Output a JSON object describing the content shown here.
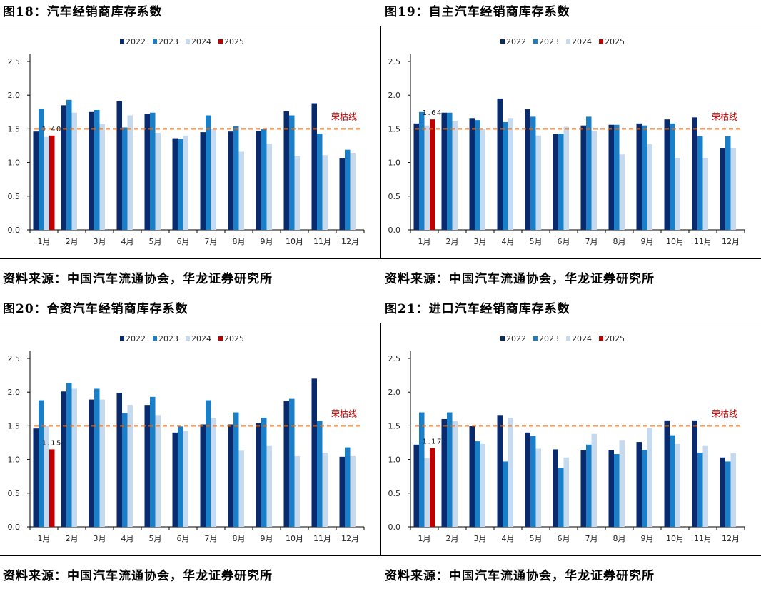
{
  "panels": [
    {
      "title": "图18：汽车经销商库存系数",
      "source": "资料来源：中国汽车流通协会，华龙证券研究所",
      "chart_data": {
        "type": "bar",
        "categories": [
          "1月",
          "2月",
          "3月",
          "4月",
          "5月",
          "6月",
          "7月",
          "8月",
          "9月",
          "10月",
          "11月",
          "12月"
        ],
        "series": [
          {
            "name": "2022",
            "color": "#0a2a6e",
            "values": [
              1.46,
              1.85,
              1.75,
              1.91,
              1.72,
              1.36,
              1.45,
              1.46,
              1.47,
              1.76,
              1.88,
              1.06
            ]
          },
          {
            "name": "2023",
            "color": "#1a7fc9",
            "values": [
              1.8,
              1.93,
              1.78,
              1.52,
              1.74,
              1.35,
              1.7,
              1.54,
              1.5,
              1.7,
              1.43,
              1.19
            ]
          },
          {
            "name": "2024",
            "color": "#c5d9ef",
            "values": [
              1.38,
              1.74,
              1.57,
              1.7,
              1.44,
              1.4,
              1.5,
              1.16,
              1.28,
              1.1,
              1.11,
              1.14
            ]
          },
          {
            "name": "2025",
            "color": "#c00000",
            "values": [
              1.4,
              null,
              null,
              null,
              null,
              null,
              null,
              null,
              null,
              null,
              null,
              null
            ]
          }
        ],
        "annotation": {
          "text": "1.40",
          "series": "2025",
          "category": "1月"
        },
        "reference_line": {
          "value": 1.5,
          "label": "荣枯线",
          "color": "#e07020"
        },
        "yticks": [
          "0.0",
          "0.5",
          "1.0",
          "1.5",
          "2.0",
          "2.5"
        ],
        "ylim": [
          0,
          2.5
        ],
        "legend_position": "top-center"
      }
    },
    {
      "title": "图19：自主汽车经销商库存系数",
      "source": "资料来源：中国汽车流通协会，华龙证券研究所",
      "chart_data": {
        "type": "bar",
        "categories": [
          "1月",
          "2月",
          "3月",
          "4月",
          "5月",
          "6月",
          "7月",
          "8月",
          "9月",
          "10月",
          "11月",
          "12月"
        ],
        "series": [
          {
            "name": "2022",
            "color": "#0a2a6e",
            "values": [
              1.58,
              1.74,
              1.66,
              1.95,
              1.79,
              1.42,
              1.55,
              1.56,
              1.58,
              1.64,
              1.67,
              1.21
            ]
          },
          {
            "name": "2023",
            "color": "#1a7fc9",
            "values": [
              1.75,
              1.74,
              1.63,
              1.6,
              1.68,
              1.43,
              1.68,
              1.56,
              1.55,
              1.58,
              1.39,
              1.39
            ]
          },
          {
            "name": "2024",
            "color": "#c5d9ef",
            "values": [
              1.55,
              1.62,
              1.5,
              1.66,
              1.4,
              1.53,
              1.47,
              1.12,
              1.27,
              1.07,
              1.07,
              1.21
            ]
          },
          {
            "name": "2025",
            "color": "#c00000",
            "values": [
              1.64,
              null,
              null,
              null,
              null,
              null,
              null,
              null,
              null,
              null,
              null,
              null
            ]
          }
        ],
        "annotation": {
          "text": "1.64",
          "series": "2025",
          "category": "1月"
        },
        "reference_line": {
          "value": 1.5,
          "label": "荣枯线",
          "color": "#e07020"
        },
        "yticks": [
          "0.0",
          "0.5",
          "1.0",
          "1.5",
          "2.0",
          "2.5"
        ],
        "ylim": [
          0,
          2.5
        ],
        "legend_position": "top-center"
      }
    },
    {
      "title": "图20：合资汽车经销商库存系数",
      "source": "资料来源：中国汽车流通协会，华龙证券研究所",
      "chart_data": {
        "type": "bar",
        "categories": [
          "1月",
          "2月",
          "3月",
          "4月",
          "5月",
          "6月",
          "7月",
          "8月",
          "9月",
          "10月",
          "11月",
          "12月"
        ],
        "series": [
          {
            "name": "2022",
            "color": "#0a2a6e",
            "values": [
              1.46,
              2.01,
              1.89,
              1.99,
              1.81,
              1.4,
              1.52,
              1.52,
              1.54,
              1.87,
              2.2,
              1.04
            ]
          },
          {
            "name": "2023",
            "color": "#1a7fc9",
            "values": [
              1.88,
              2.14,
              2.05,
              1.69,
              1.93,
              1.49,
              1.88,
              1.7,
              1.62,
              1.9,
              1.57,
              1.18
            ]
          },
          {
            "name": "2024",
            "color": "#c5d9ef",
            "values": [
              1.5,
              2.05,
              1.89,
              1.81,
              1.66,
              1.42,
              1.62,
              1.13,
              1.2,
              1.05,
              1.1,
              1.05
            ]
          },
          {
            "name": "2025",
            "color": "#c00000",
            "values": [
              1.15,
              null,
              null,
              null,
              null,
              null,
              null,
              null,
              null,
              null,
              null,
              null
            ]
          }
        ],
        "annotation": {
          "text": "1.15",
          "series": "2025",
          "category": "1月"
        },
        "reference_line": {
          "value": 1.5,
          "label": "荣枯线",
          "color": "#e07020"
        },
        "yticks": [
          "0.0",
          "0.5",
          "1.0",
          "1.5",
          "2.0",
          "2.5"
        ],
        "ylim": [
          0,
          2.5
        ],
        "legend_position": "top-center"
      }
    },
    {
      "title": "图21：进口汽车经销商库存系数",
      "source": "资料来源：中国汽车流通协会，华龙证券研究所",
      "chart_data": {
        "type": "bar",
        "categories": [
          "1月",
          "2月",
          "3月",
          "4月",
          "5月",
          "6月",
          "7月",
          "8月",
          "9月",
          "10月",
          "11月",
          "12月"
        ],
        "series": [
          {
            "name": "2022",
            "color": "#0a2a6e",
            "values": [
              1.22,
              1.6,
              1.5,
              1.66,
              1.4,
              1.15,
              1.14,
              1.14,
              1.26,
              1.58,
              1.58,
              1.03
            ]
          },
          {
            "name": "2023",
            "color": "#1a7fc9",
            "values": [
              1.7,
              1.7,
              1.27,
              0.97,
              1.35,
              0.87,
              1.22,
              1.08,
              1.14,
              1.36,
              1.1,
              0.97
            ]
          },
          {
            "name": "2024",
            "color": "#c5d9ef",
            "values": [
              1.02,
              1.57,
              1.23,
              1.62,
              1.16,
              1.03,
              1.38,
              1.29,
              1.47,
              1.23,
              1.2,
              1.1
            ]
          },
          {
            "name": "2025",
            "color": "#c00000",
            "values": [
              1.17,
              null,
              null,
              null,
              null,
              null,
              null,
              null,
              null,
              null,
              null,
              null
            ]
          }
        ],
        "annotation": {
          "text": "1.17",
          "series": "2025",
          "category": "1月"
        },
        "reference_line": {
          "value": 1.5,
          "label": "荣枯线",
          "color": "#e07020"
        },
        "yticks": [
          "0.0",
          "0.5",
          "1.0",
          "1.5",
          "2.0",
          "2.5"
        ],
        "ylim": [
          0,
          2.5
        ],
        "legend_position": "top-center"
      }
    }
  ]
}
